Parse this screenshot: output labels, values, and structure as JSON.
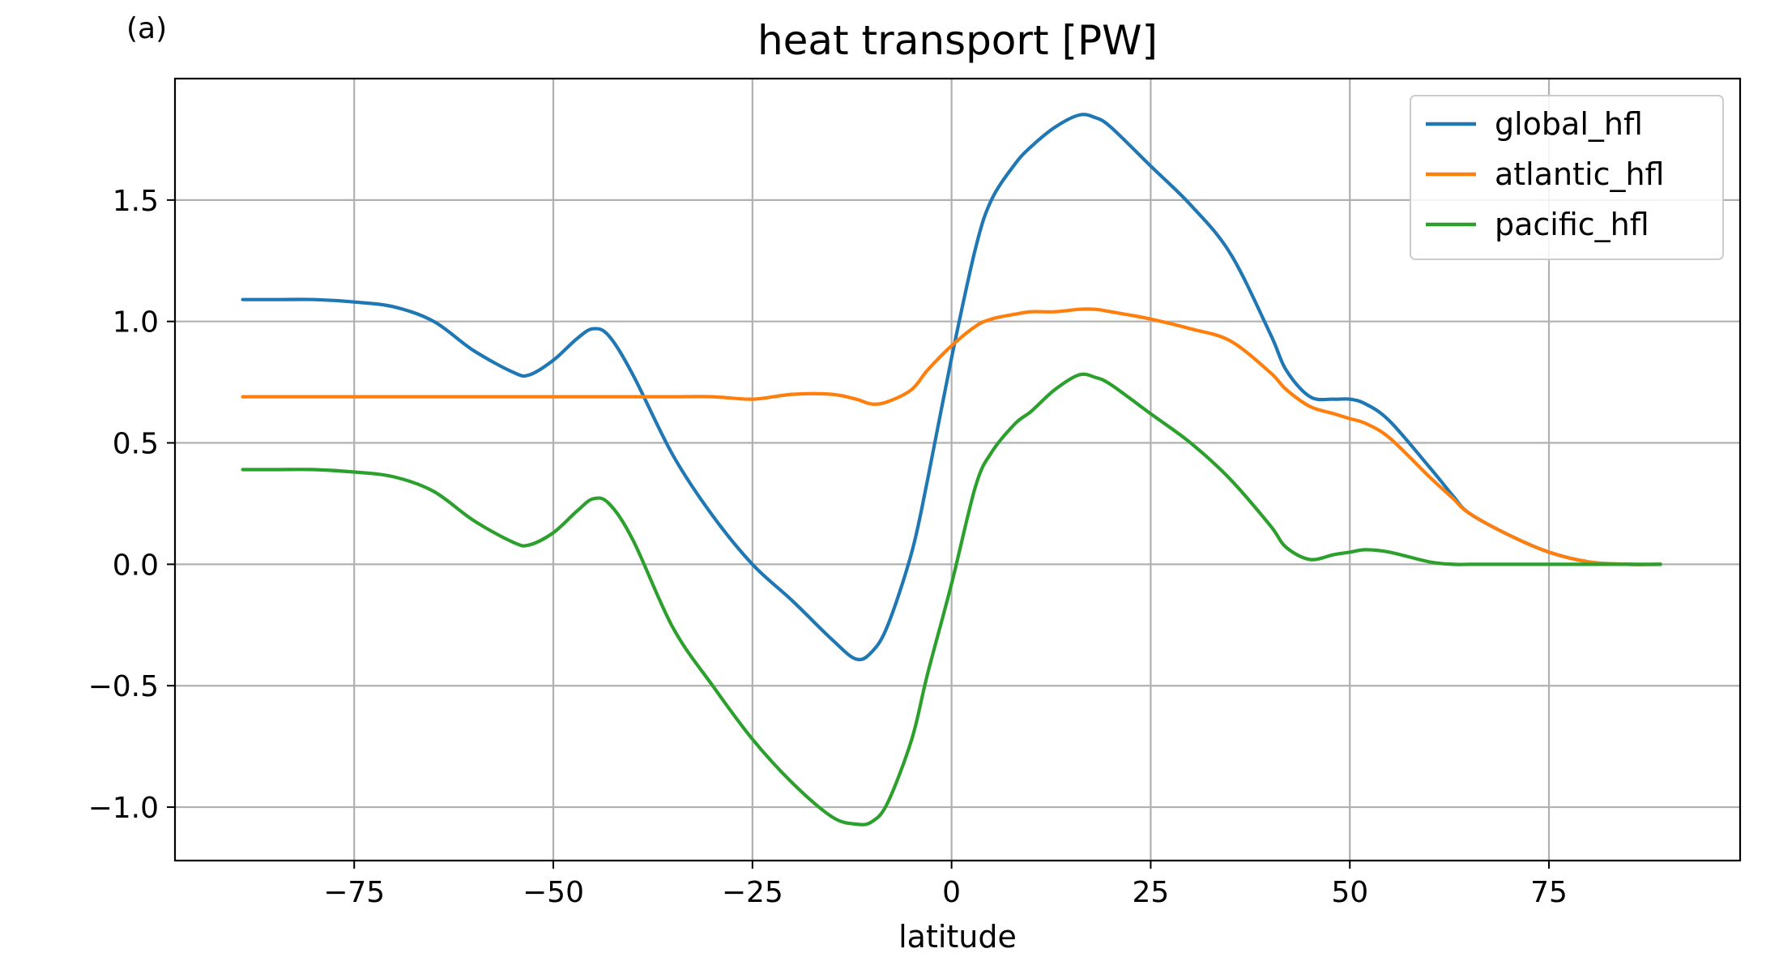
{
  "panel_label": "(a)",
  "chart_data": {
    "type": "line",
    "title": "heat transport [PW]",
    "xlabel": "latitude",
    "ylabel": "",
    "xlim": [
      -97.5,
      99
    ],
    "ylim": [
      -1.22,
      2.0
    ],
    "xticks": [
      -75,
      -50,
      -25,
      0,
      25,
      50,
      75
    ],
    "xtick_labels": [
      "−75",
      "−50",
      "−25",
      "0",
      "25",
      "50",
      "75"
    ],
    "yticks": [
      -1.0,
      -0.5,
      0.0,
      0.5,
      1.0,
      1.5
    ],
    "ytick_labels": [
      "−1.0",
      "−0.5",
      "0.0",
      "0.5",
      "1.0",
      "1.5"
    ],
    "grid": true,
    "legend_position": "top-right",
    "x": [
      -89,
      -85,
      -80,
      -75,
      -70,
      -65,
      -60,
      -55,
      -53,
      -50,
      -47,
      -45,
      -43,
      -40,
      -35,
      -30,
      -25,
      -20,
      -15,
      -12,
      -10,
      -8,
      -5,
      -3,
      0,
      3,
      5,
      8,
      10,
      13,
      16,
      18,
      20,
      25,
      30,
      35,
      40,
      42,
      45,
      48,
      50,
      52,
      55,
      60,
      63,
      65,
      70,
      75,
      80,
      85,
      89
    ],
    "series": [
      {
        "name": "global_hfl",
        "color": "#1f77b4",
        "values": [
          1.09,
          1.09,
          1.09,
          1.08,
          1.06,
          1.0,
          0.88,
          0.79,
          0.78,
          0.84,
          0.93,
          0.97,
          0.94,
          0.78,
          0.45,
          0.2,
          0.0,
          -0.15,
          -0.31,
          -0.39,
          -0.36,
          -0.25,
          0.05,
          0.35,
          0.85,
          1.3,
          1.5,
          1.65,
          1.72,
          1.8,
          1.85,
          1.84,
          1.8,
          1.64,
          1.48,
          1.28,
          0.95,
          0.8,
          0.69,
          0.68,
          0.68,
          0.66,
          0.59,
          0.4,
          0.28,
          0.21,
          0.12,
          0.05,
          0.01,
          0.0,
          0.0
        ]
      },
      {
        "name": "atlantic_hfl",
        "color": "#ff7f0e",
        "values": [
          0.69,
          0.69,
          0.69,
          0.69,
          0.69,
          0.69,
          0.69,
          0.69,
          0.69,
          0.69,
          0.69,
          0.69,
          0.69,
          0.69,
          0.69,
          0.69,
          0.68,
          0.7,
          0.7,
          0.68,
          0.66,
          0.67,
          0.72,
          0.8,
          0.9,
          0.98,
          1.01,
          1.03,
          1.04,
          1.04,
          1.05,
          1.05,
          1.04,
          1.01,
          0.97,
          0.92,
          0.79,
          0.72,
          0.65,
          0.62,
          0.6,
          0.58,
          0.52,
          0.36,
          0.27,
          0.21,
          0.12,
          0.05,
          0.01,
          0.0,
          0.0
        ]
      },
      {
        "name": "pacific_hfl",
        "color": "#2ca02c",
        "values": [
          0.39,
          0.39,
          0.39,
          0.38,
          0.36,
          0.3,
          0.18,
          0.09,
          0.08,
          0.13,
          0.22,
          0.27,
          0.25,
          0.1,
          -0.26,
          -0.5,
          -0.72,
          -0.9,
          -1.04,
          -1.07,
          -1.06,
          -0.98,
          -0.72,
          -0.45,
          -0.08,
          0.32,
          0.46,
          0.58,
          0.63,
          0.72,
          0.78,
          0.77,
          0.74,
          0.62,
          0.5,
          0.35,
          0.16,
          0.07,
          0.02,
          0.04,
          0.05,
          0.06,
          0.05,
          0.01,
          0.0,
          0.0,
          0.0,
          0.0,
          0.0,
          0.0,
          0.0
        ]
      }
    ]
  }
}
